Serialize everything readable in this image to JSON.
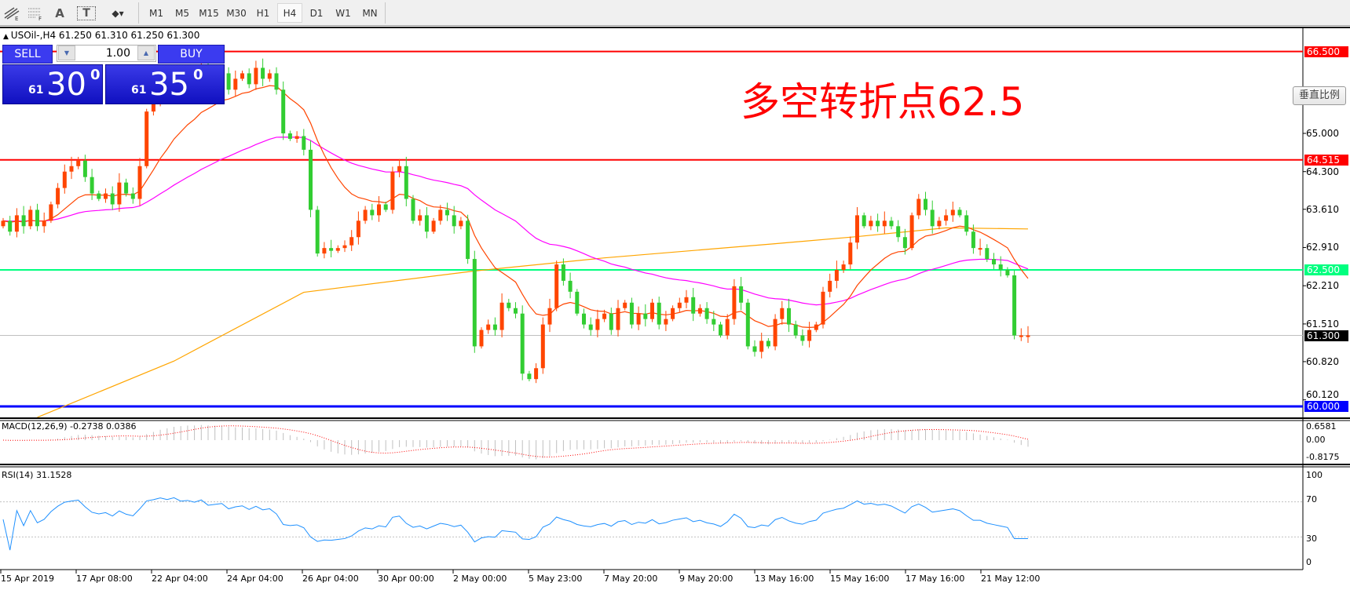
{
  "toolbar": {
    "tools": [
      {
        "icon": "fibonacci-expansion-icon"
      },
      {
        "icon": "fibonacci-retracement-icon"
      },
      {
        "icon": "text-icon",
        "label": "A"
      },
      {
        "icon": "text-label-icon",
        "label": "T"
      },
      {
        "icon": "arrows-icon"
      }
    ],
    "timeframes": [
      "M1",
      "M5",
      "M15",
      "M30",
      "H1",
      "H4",
      "D1",
      "W1",
      "MN"
    ],
    "active_timeframe": "H4"
  },
  "chart": {
    "symbol_line": "USOil-,H4  61.250 61.310 61.250 61.300",
    "annotation": "多空转折点62.5",
    "scale_button": "垂直比例",
    "price_ticks": [
      "65.000",
      "64.300",
      "63.610",
      "62.910",
      "62.210",
      "61.510",
      "60.820",
      "60.120"
    ],
    "tick_prices": [
      65.0,
      64.3,
      63.61,
      62.91,
      62.21,
      61.51,
      60.82,
      60.12
    ],
    "hlines": [
      {
        "price": 66.5,
        "label": "66.500",
        "color": "#ff0000"
      },
      {
        "price": 64.515,
        "label": "64.515",
        "color": "#ff0000"
      },
      {
        "price": 62.5,
        "label": "62.500",
        "color": "#00ff7f"
      },
      {
        "price": 60.0,
        "label": "60.000",
        "color": "#0000ff"
      }
    ],
    "current_price": {
      "price": 61.3,
      "label": "61.300",
      "color": "#000000"
    },
    "candle_colors": {
      "up": "#ff4500",
      "down": "#32cd32"
    },
    "closes": [
      63.4,
      63.2,
      63.5,
      63.3,
      63.6,
      63.3,
      63.4,
      63.7,
      64.0,
      64.3,
      64.4,
      64.5,
      64.2,
      63.9,
      63.8,
      63.9,
      63.7,
      64.1,
      63.9,
      63.8,
      64.4,
      65.4,
      65.6,
      65.9,
      65.8,
      66.1,
      65.9,
      66.0,
      65.9,
      66.2,
      65.9,
      66.0,
      66.1,
      65.8,
      66.0,
      66.1,
      65.9,
      66.2,
      66.0,
      66.1,
      65.8,
      65.0,
      64.9,
      64.95,
      64.7,
      63.6,
      62.8,
      62.9,
      62.85,
      62.9,
      62.95,
      63.1,
      63.4,
      63.6,
      63.5,
      63.7,
      63.6,
      64.3,
      64.4,
      63.8,
      63.4,
      63.5,
      63.2,
      63.4,
      63.6,
      63.5,
      63.3,
      63.4,
      62.7,
      61.1,
      61.4,
      61.5,
      61.4,
      61.9,
      61.8,
      61.7,
      60.6,
      60.5,
      60.7,
      61.5,
      61.8,
      62.6,
      62.3,
      62.1,
      61.7,
      61.5,
      61.4,
      61.6,
      61.7,
      61.4,
      61.8,
      61.9,
      61.5,
      61.7,
      61.6,
      61.9,
      61.5,
      61.6,
      61.8,
      61.9,
      62.0,
      61.7,
      61.8,
      61.6,
      61.5,
      61.3,
      61.6,
      62.2,
      61.9,
      61.1,
      61.0,
      61.2,
      61.1,
      61.6,
      61.8,
      61.5,
      61.3,
      61.2,
      61.4,
      61.5,
      62.1,
      62.3,
      62.5,
      62.6,
      63.0,
      63.5,
      63.3,
      63.4,
      63.3,
      63.4,
      63.3,
      63.1,
      62.9,
      63.5,
      63.8,
      63.6,
      63.3,
      63.4,
      63.5,
      63.6,
      63.5,
      63.2,
      62.9,
      62.9,
      62.7,
      62.6,
      62.5,
      62.4,
      61.3,
      61.3,
      61.3
    ],
    "ma_colors": {
      "fast": "#ff4500",
      "medium": "#ff00ff",
      "slow": "#ffa500"
    },
    "slow_ma_points": [
      [
        5,
        59.8
      ],
      [
        25,
        60.83
      ],
      [
        44,
        62.09
      ],
      [
        69,
        62.48
      ],
      [
        88,
        62.72
      ],
      [
        113,
        62.98
      ],
      [
        125,
        63.11
      ],
      [
        138,
        63.27
      ],
      [
        150,
        63.25
      ]
    ]
  },
  "one_click": {
    "sell_label": "SELL",
    "buy_label": "BUY",
    "lot": "1.00",
    "sell_prefix": "61",
    "sell_main": "30",
    "sell_sup": "0",
    "buy_prefix": "61",
    "buy_main": "35",
    "buy_sup": "0"
  },
  "macd": {
    "label": "MACD(12,26,9) -0.2738 0.0386",
    "ticks": [
      "0.6581",
      "0.00",
      "-0.8175"
    ]
  },
  "rsi": {
    "label": "RSI(14) 31.1528",
    "ticks": [
      "100",
      "70",
      "30",
      "0"
    ],
    "levels": [
      70,
      30
    ]
  },
  "time_axis": [
    "15 Apr 2019",
    "17 Apr 08:00",
    "22 Apr 04:00",
    "24 Apr 04:00",
    "26 Apr 04:00",
    "30 Apr 00:00",
    "2 May 00:00",
    "5 May 23:00",
    "7 May 20:00",
    "9 May 20:00",
    "13 May 16:00",
    "15 May 16:00",
    "17 May 16:00",
    "21 May 12:00"
  ]
}
